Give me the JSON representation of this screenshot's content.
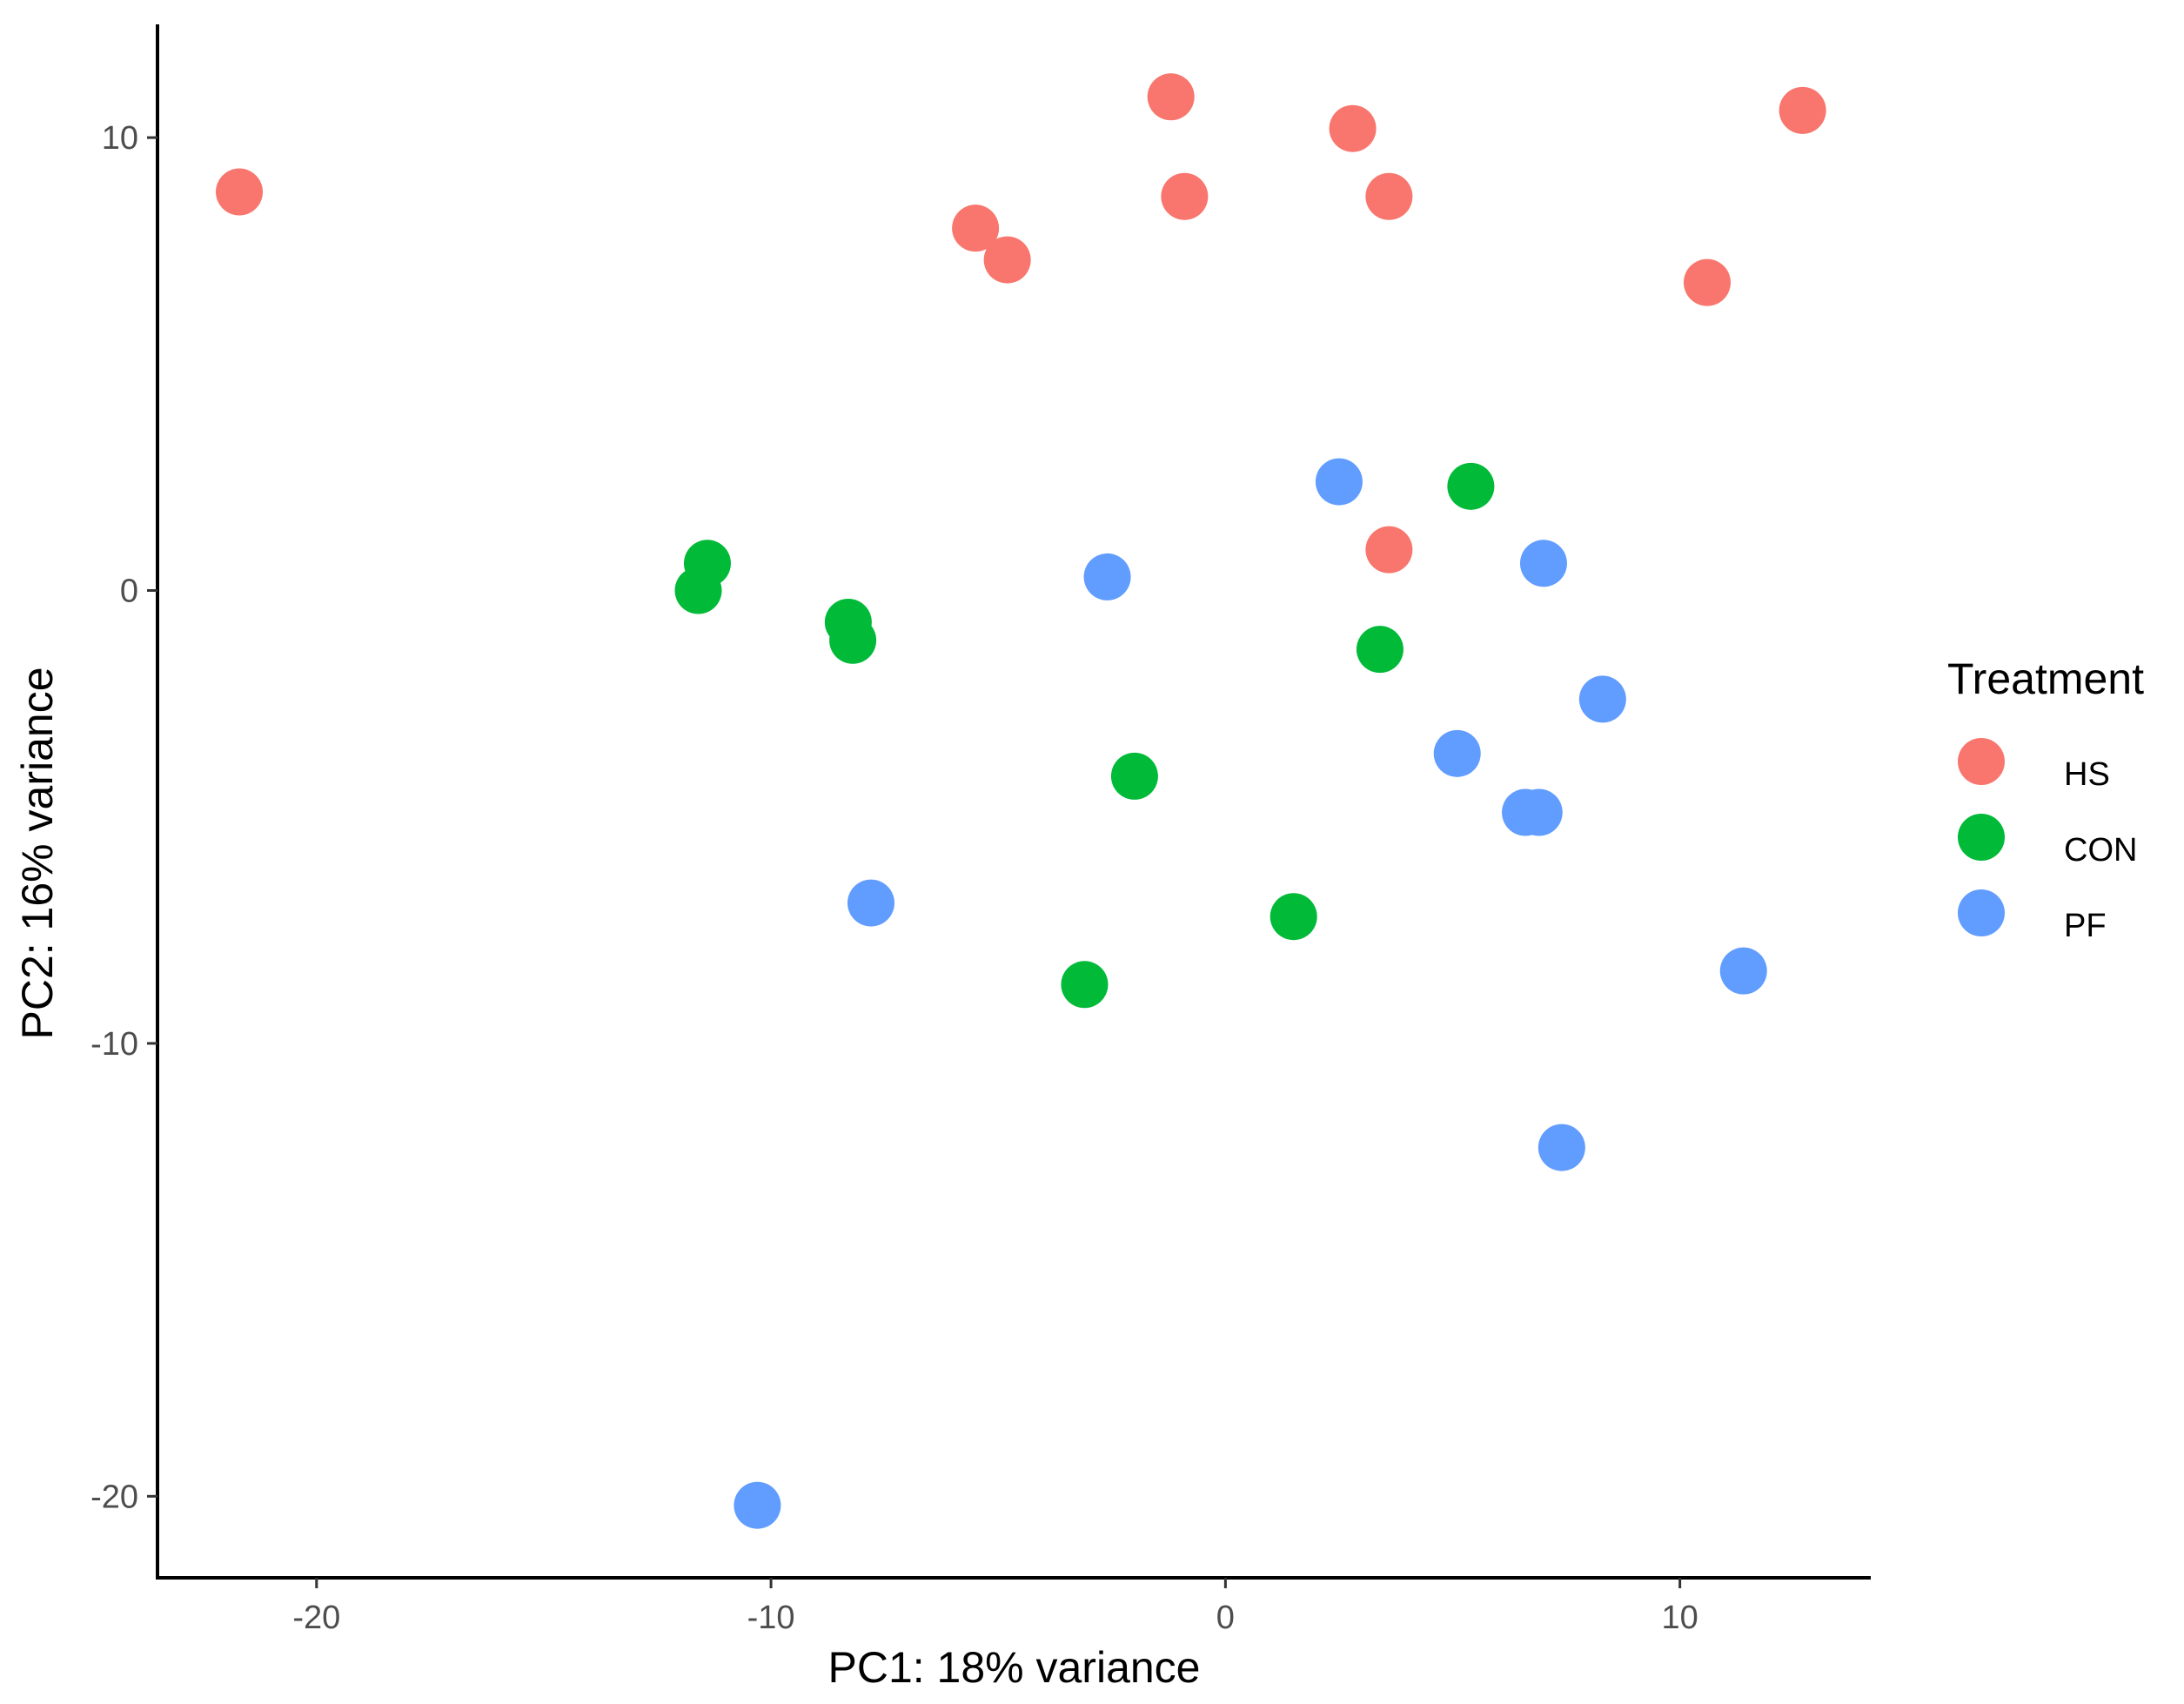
{
  "chart_data": {
    "type": "scatter",
    "xlabel": "PC1: 18% variance",
    "ylabel": "PC2: 16% variance",
    "xlim": [
      -23.5,
      14.2
    ],
    "ylim": [
      -21.8,
      12.5
    ],
    "xticks": [
      -20,
      -10,
      0,
      10
    ],
    "yticks": [
      10,
      0,
      -10,
      -20
    ],
    "grid": false,
    "legend": {
      "title": "Treatment",
      "position": "right",
      "entries": [
        "HS",
        "CON",
        "PF"
      ]
    },
    "series": [
      {
        "name": "HS",
        "color": "#F8766D",
        "points": [
          {
            "x": -21.7,
            "y": 8.8
          },
          {
            "x": -1.2,
            "y": 10.9
          },
          {
            "x": 2.8,
            "y": 10.2
          },
          {
            "x": 12.7,
            "y": 10.6
          },
          {
            "x": -5.5,
            "y": 8.0
          },
          {
            "x": -4.8,
            "y": 7.3
          },
          {
            "x": -0.9,
            "y": 8.7
          },
          {
            "x": 3.6,
            "y": 8.7
          },
          {
            "x": 10.6,
            "y": 6.8
          },
          {
            "x": 3.6,
            "y": 0.9
          }
        ]
      },
      {
        "name": "CON",
        "color": "#00BA38",
        "points": [
          {
            "x": -11.4,
            "y": 0.6
          },
          {
            "x": -11.6,
            "y": 0.0
          },
          {
            "x": -8.3,
            "y": -0.7
          },
          {
            "x": -8.2,
            "y": -1.1
          },
          {
            "x": 5.4,
            "y": 2.3
          },
          {
            "x": 3.4,
            "y": -1.3
          },
          {
            "x": -2.0,
            "y": -4.1
          },
          {
            "x": 1.5,
            "y": -7.2
          },
          {
            "x": -3.1,
            "y": -8.7
          }
        ]
      },
      {
        "name": "PF",
        "color": "#619CFF",
        "points": [
          {
            "x": 2.5,
            "y": 2.4
          },
          {
            "x": -2.6,
            "y": 0.3
          },
          {
            "x": 7.0,
            "y": 0.6
          },
          {
            "x": 8.3,
            "y": -2.4
          },
          {
            "x": 5.1,
            "y": -3.6
          },
          {
            "x": 6.6,
            "y": -4.9
          },
          {
            "x": 6.9,
            "y": -4.9
          },
          {
            "x": -7.8,
            "y": -6.9
          },
          {
            "x": 11.4,
            "y": -8.4
          },
          {
            "x": 7.4,
            "y": -12.3
          },
          {
            "x": -10.3,
            "y": -20.2
          }
        ]
      }
    ]
  }
}
